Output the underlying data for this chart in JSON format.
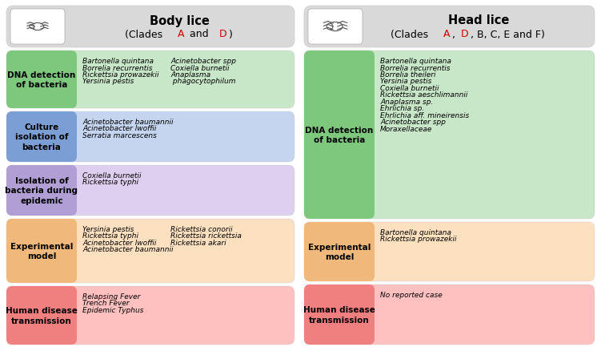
{
  "left_title_main": "Body lice",
  "left_title_sub_parts": [
    {
      "text": "(Clades ",
      "color": "#000000"
    },
    {
      "text": "A",
      "color": "#cc0000"
    },
    {
      "text": " and ",
      "color": "#000000"
    },
    {
      "text": "D",
      "color": "#cc0000"
    },
    {
      "text": ")",
      "color": "#000000"
    }
  ],
  "right_title_main": "Head lice",
  "right_title_sub_parts": [
    {
      "text": "(Clades ",
      "color": "#000000"
    },
    {
      "text": "A",
      "color": "#cc0000"
    },
    {
      "text": ", ",
      "color": "#000000"
    },
    {
      "text": "D",
      "color": "#cc0000"
    },
    {
      "text": ", B, C, E and F)",
      "color": "#000000"
    }
  ],
  "header_bg": "#d9d9d9",
  "left_boxes": [
    {
      "label": "DNA detection\nof bacteria",
      "label_bg": "#7ec87e",
      "box_bg": "#c8e6c8",
      "content_col1": "Bartonella quintana\nBorrelia recurrentis\nRickettsia prowazekii\nYersinia pestis",
      "content_col2": "Acinetobacter spp\nCoxiella burnetii\nAnaplasma\n phagocytophilum"
    },
    {
      "label": "Culture\nisolation of\nbacteria",
      "label_bg": "#7b9fd4",
      "box_bg": "#c5d5ef",
      "content_col1": "Acinetobacter baumannii\nAcinetobacter lwoffii\nSerratia marcescens",
      "content_col2": ""
    },
    {
      "label": "Isolation of\nbacteria during\nepidemic",
      "label_bg": "#b09ed4",
      "box_bg": "#ddd0ef",
      "content_col1": "Coxiella burnetii\nRickettsia typhi",
      "content_col2": ""
    },
    {
      "label": "Experimental\nmodel",
      "label_bg": "#f0b87a",
      "box_bg": "#fde0c0",
      "content_col1": "Yersinia pestis\nRickettsia typhi\nAcinetobacter lwoffii\nAcinetobacter baumannii",
      "content_col2": "Rickettsia conorii\nRickettsia rickettsia\nRickettsia akari"
    },
    {
      "label": "Human disease\ntransmission",
      "label_bg": "#f08080",
      "box_bg": "#ffc0c0",
      "content_col1": "Relapsing Fever\nTrench Fever\nEpidemic Typhus",
      "content_col2": ""
    }
  ],
  "right_boxes": [
    {
      "label": "DNA detection\nof bacteria",
      "label_bg": "#7ec87e",
      "box_bg": "#c8e6c8",
      "content_col1": "Bartonella quintana\nBorrelia recurrentis\nBorrelia theileri\nYersinia pestis\nCoxiella burnetii\nRickettsia aeschlimannii\nAnaplasma sp.\nEhrlichia sp.\nEhrlichia aff. mineirensis\nAcinetobacter spp\nMoraxellaceae",
      "content_col2": ""
    },
    {
      "label": "Experimental\nmodel",
      "label_bg": "#f0b87a",
      "box_bg": "#fde0c0",
      "content_col1": "Bartonella quintana\nRickettsia prowazekii",
      "content_col2": ""
    },
    {
      "label": "Human disease\ntransmission",
      "label_bg": "#f08080",
      "box_bg": "#ffc0c0",
      "content_col1": "No reported case",
      "content_col2": ""
    }
  ],
  "bg_color": "#ffffff",
  "border_color": "#cccccc"
}
